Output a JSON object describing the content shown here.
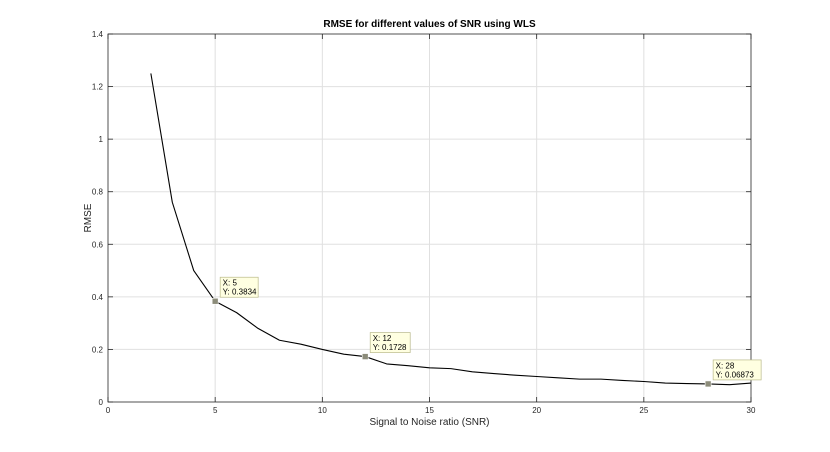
{
  "chart_data": {
    "type": "line",
    "title": "RMSE for different values of SNR using WLS",
    "xlabel": "Signal to Noise ratio (SNR)",
    "ylabel": "RMSE",
    "xlim": [
      0,
      30
    ],
    "ylim": [
      0,
      1.4
    ],
    "xticks": [
      0,
      5,
      10,
      15,
      20,
      25,
      30
    ],
    "yticks": [
      0,
      0.2,
      0.4,
      0.6,
      0.8,
      1,
      1.2,
      1.4
    ],
    "xtick_labels": [
      "0",
      "5",
      "10",
      "15",
      "20",
      "25",
      "30"
    ],
    "ytick_labels": [
      "0",
      "0.2",
      "0.4",
      "0.6",
      "0.8",
      "1",
      "1.2",
      "1.4"
    ],
    "grid": true,
    "legend": false,
    "series": [
      {
        "color": "#000000",
        "x": [
          2,
          3,
          4,
          5,
          6,
          7,
          8,
          9,
          10,
          11,
          12,
          13,
          14,
          15,
          16,
          17,
          18,
          19,
          20,
          21,
          22,
          23,
          24,
          25,
          26,
          27,
          28,
          29,
          30
        ],
        "y": [
          1.25,
          0.76,
          0.5,
          0.3834,
          0.34,
          0.28,
          0.235,
          0.22,
          0.2,
          0.182,
          0.1728,
          0.145,
          0.138,
          0.13,
          0.127,
          0.115,
          0.108,
          0.102,
          0.097,
          0.092,
          0.087,
          0.087,
          0.082,
          0.078,
          0.072,
          0.07,
          0.06873,
          0.066,
          0.072
        ]
      }
    ],
    "annotations": [
      {
        "x": 5,
        "y": 0.3834,
        "x_text": "X: 5",
        "y_text": "Y: 0.3834"
      },
      {
        "x": 12,
        "y": 0.1728,
        "x_text": "X: 12",
        "y_text": "Y: 0.1728"
      },
      {
        "x": 28,
        "y": 0.06873,
        "x_text": "X: 28",
        "y_text": "Y: 0.06873"
      }
    ],
    "colors": {
      "line": "#000000",
      "grid": "#e0e0e0",
      "axes": "#262626",
      "datatip_fill": "#ffffe1",
      "datatip_border": "#b9b98a",
      "datatip_marker": "#8c8c7a"
    }
  }
}
